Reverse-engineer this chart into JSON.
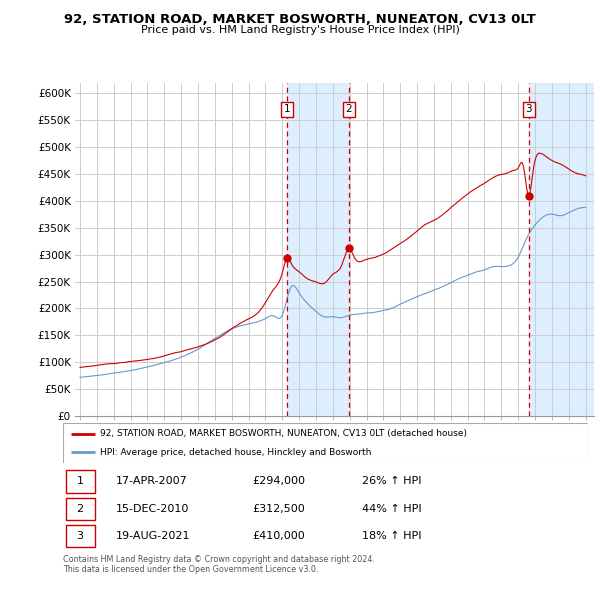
{
  "title": "92, STATION ROAD, MARKET BOSWORTH, NUNEATON, CV13 0LT",
  "subtitle": "Price paid vs. HM Land Registry's House Price Index (HPI)",
  "ylabel_ticks": [
    "£0",
    "£50K",
    "£100K",
    "£150K",
    "£200K",
    "£250K",
    "£300K",
    "£350K",
    "£400K",
    "£450K",
    "£500K",
    "£550K",
    "£600K"
  ],
  "ytick_values": [
    0,
    50000,
    100000,
    150000,
    200000,
    250000,
    300000,
    350000,
    400000,
    450000,
    500000,
    550000,
    600000
  ],
  "ylim": [
    0,
    620000
  ],
  "sale_dates": [
    2007.29,
    2010.96,
    2021.63
  ],
  "sale_labels": [
    "1",
    "2",
    "3"
  ],
  "sale_prices": [
    294000,
    312500,
    410000
  ],
  "sale_date_strs": [
    "17-APR-2007",
    "15-DEC-2010",
    "19-AUG-2021"
  ],
  "sale_pct": [
    "26%",
    "44%",
    "18%"
  ],
  "legend_house": "92, STATION ROAD, MARKET BOSWORTH, NUNEATON, CV13 0LT (detached house)",
  "legend_hpi": "HPI: Average price, detached house, Hinckley and Bosworth",
  "footnote1": "Contains HM Land Registry data © Crown copyright and database right 2024.",
  "footnote2": "This data is licensed under the Open Government Licence v3.0.",
  "house_color": "#cc0000",
  "hpi_color": "#6699cc",
  "vline_color": "#cc0000",
  "bg_color": "#ffffff",
  "grid_color": "#cccccc",
  "shade_color": "#ddeeff",
  "xlim_start": 1994.7,
  "xlim_end": 2025.5
}
